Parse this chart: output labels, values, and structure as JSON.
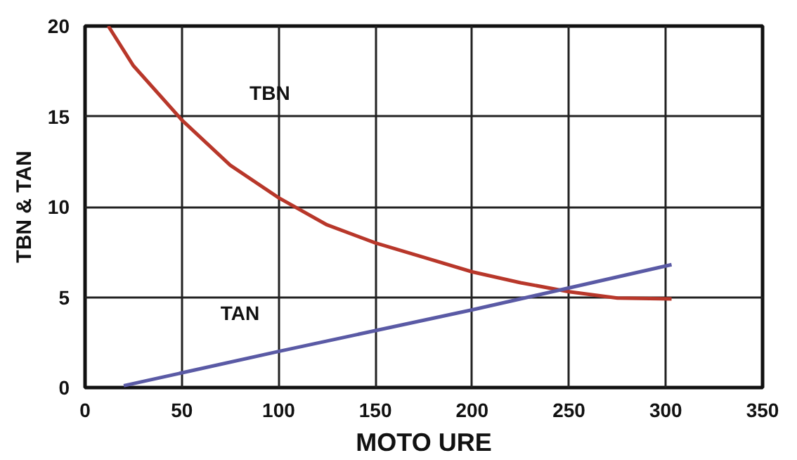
{
  "chart_data": {
    "type": "line",
    "xlabel": "MOTO URE",
    "ylabel": "TBN & TAN",
    "xlim": [
      0,
      350
    ],
    "ylim": [
      0,
      20
    ],
    "xticks": [
      0,
      50,
      100,
      150,
      200,
      250,
      300,
      350
    ],
    "yticks": [
      0,
      5,
      10,
      15,
      20
    ],
    "grid": true,
    "series": [
      {
        "name": "TBN",
        "color": "#b8372a",
        "x": [
          12,
          25,
          50,
          75,
          100,
          125,
          150,
          175,
          200,
          225,
          250,
          275,
          303
        ],
        "values": [
          20,
          17.8,
          14.8,
          12.3,
          10.5,
          9,
          8,
          7.2,
          6.4,
          5.8,
          5.3,
          4.95,
          4.9
        ]
      },
      {
        "name": "TAN",
        "color": "#5a5aa5",
        "x": [
          20,
          100,
          200,
          303
        ],
        "values": [
          0.1,
          2.0,
          4.3,
          6.8
        ]
      }
    ]
  }
}
